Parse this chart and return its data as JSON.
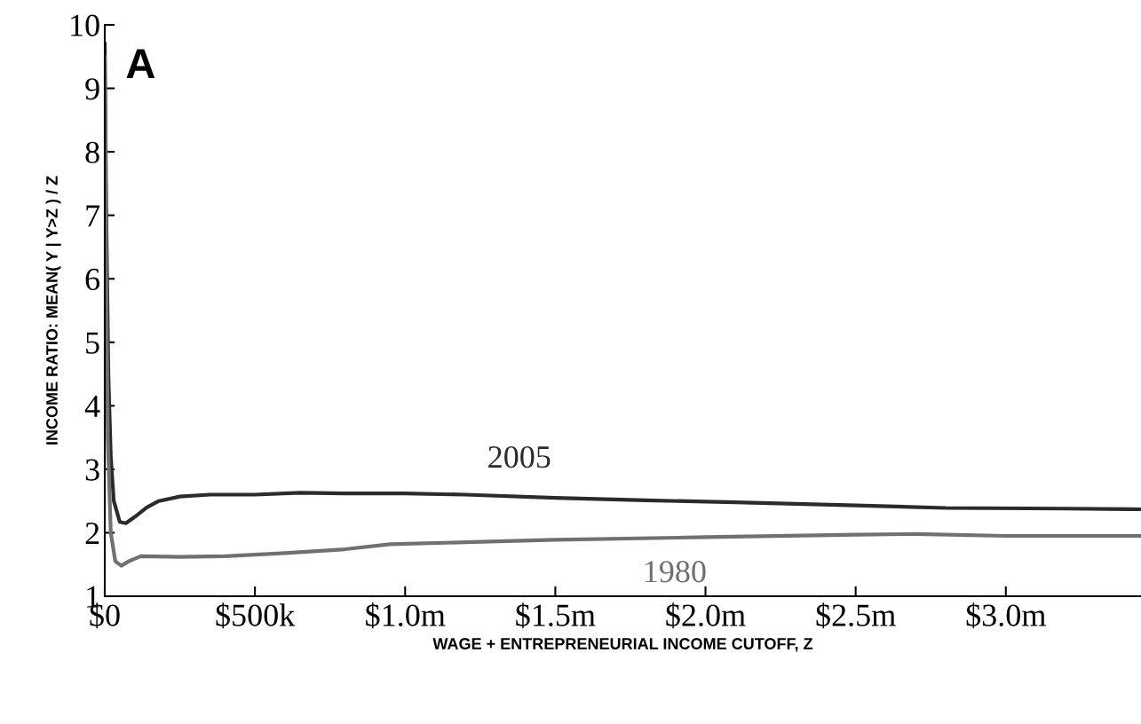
{
  "chart_data": {
    "type": "line",
    "xlabel": "WAGE + ENTREPRENEURIAL INCOME CUTOFF, Z",
    "ylabel": "INCOME RATIO: MEAN( Y | Y>Z ) / Z",
    "xlim": [
      0,
      3450000
    ],
    "ylim": [
      1,
      10
    ],
    "xticks": [
      {
        "value": 0,
        "label": "$0"
      },
      {
        "value": 500000,
        "label": "$500k"
      },
      {
        "value": 1000000,
        "label": "$1.0m"
      },
      {
        "value": 1500000,
        "label": "$1.5m"
      },
      {
        "value": 2000000,
        "label": "$2.0m"
      },
      {
        "value": 2500000,
        "label": "$2.5m"
      },
      {
        "value": 3000000,
        "label": "$3.0m"
      }
    ],
    "yticks": [
      1,
      2,
      3,
      4,
      5,
      6,
      7,
      8,
      9,
      10
    ],
    "grid": false,
    "legend": false,
    "marker": "none",
    "line_style": "solid",
    "series": [
      {
        "name": "2005",
        "color": "#2b2b2b",
        "x": [
          0,
          5000,
          12000,
          20000,
          30000,
          50000,
          70000,
          100000,
          140000,
          180000,
          250000,
          350000,
          500000,
          650000,
          800000,
          1000000,
          1200000,
          1500000,
          1800000,
          2100000,
          2500000,
          2800000,
          3200000,
          3450000
        ],
        "values": [
          9.7,
          7,
          4.5,
          3.2,
          2.5,
          2.17,
          2.15,
          2.25,
          2.4,
          2.5,
          2.57,
          2.6,
          2.6,
          2.63,
          2.62,
          2.62,
          2.6,
          2.55,
          2.51,
          2.48,
          2.43,
          2.39,
          2.38,
          2.37
        ]
      },
      {
        "name": "1980",
        "color": "#707070",
        "x": [
          0,
          5000,
          10000,
          20000,
          35000,
          55000,
          80000,
          120000,
          250000,
          400000,
          600000,
          800000,
          950000,
          1200000,
          1500000,
          2000000,
          2500000,
          2700000,
          3000000,
          3450000
        ],
        "values": [
          9.5,
          6,
          3.5,
          2.0,
          1.55,
          1.48,
          1.55,
          1.63,
          1.62,
          1.63,
          1.68,
          1.74,
          1.82,
          1.85,
          1.89,
          1.93,
          1.97,
          1.98,
          1.95,
          1.95
        ]
      }
    ],
    "annotations": [
      "A"
    ]
  }
}
